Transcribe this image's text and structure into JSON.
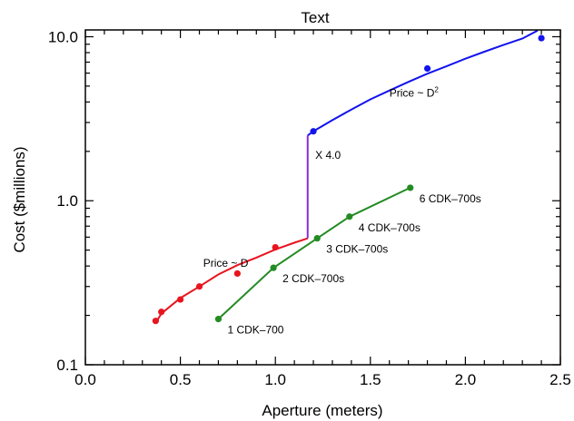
{
  "chart_data": {
    "type": "line",
    "title": "Text",
    "xlabel": "Aperture (meters)",
    "ylabel": "Cost ($millions)",
    "xlim": [
      0.0,
      2.5
    ],
    "ylim": [
      0.1,
      11.0
    ],
    "yscale": "log",
    "grid": false,
    "xticks": [
      {
        "value": 0.0,
        "label": "0.0"
      },
      {
        "value": 0.5,
        "label": "0.5"
      },
      {
        "value": 1.0,
        "label": "1.0"
      },
      {
        "value": 1.5,
        "label": "1.5"
      },
      {
        "value": 2.0,
        "label": "2.0"
      },
      {
        "value": 2.5,
        "label": "2.5"
      }
    ],
    "yticks": [
      {
        "value": 0.1,
        "label": "0.1"
      },
      {
        "value": 1.0,
        "label": "1.0"
      },
      {
        "value": 10.0,
        "label": "10.0"
      }
    ],
    "series": [
      {
        "color": "#e8141e",
        "points": {
          "x": [
            0.37,
            0.4,
            0.5,
            0.6,
            0.8,
            1.0
          ],
          "y": [
            0.185,
            0.21,
            0.25,
            0.3,
            0.36,
            0.52
          ]
        },
        "fit": {
          "x": [
            0.37,
            0.4,
            0.5,
            0.6,
            0.7,
            0.8,
            0.9,
            1.0,
            1.1,
            1.17
          ],
          "y": [
            0.18,
            0.205,
            0.255,
            0.3,
            0.355,
            0.405,
            0.45,
            0.505,
            0.555,
            0.59
          ]
        }
      },
      {
        "color": "#1313ee",
        "points": {
          "x": [
            1.2,
            1.8,
            2.4
          ],
          "y": [
            2.65,
            6.4,
            9.8
          ]
        },
        "fit": {
          "x": [
            1.17,
            1.2,
            1.3,
            1.4,
            1.5,
            1.6,
            1.7,
            1.8,
            1.9,
            2.0,
            2.1,
            2.2,
            2.3,
            2.38
          ],
          "y": [
            2.5,
            2.65,
            3.1,
            3.6,
            4.15,
            4.7,
            5.3,
            5.95,
            6.6,
            7.35,
            8.1,
            8.9,
            9.75,
            10.9
          ]
        }
      },
      {
        "color": "#238b23",
        "points": {
          "x": [
            0.7,
            0.99,
            1.22,
            1.39,
            1.71
          ],
          "y": [
            0.19,
            0.39,
            0.59,
            0.8,
            1.2
          ]
        },
        "fit": {
          "x": [
            0.7,
            0.99,
            1.22,
            1.39,
            1.71
          ],
          "y": [
            0.19,
            0.39,
            0.59,
            0.8,
            1.2
          ]
        },
        "point_labels": [
          "1 CDK–700",
          "2 CDK–700s",
          "3 CDK–700s",
          "4 CDK–700s",
          "6 CDK–700s"
        ]
      }
    ],
    "jump": {
      "x": 1.17,
      "y_from": 0.59,
      "y_to": 2.5,
      "color": "#8a2be2"
    },
    "annotations": [
      {
        "text": "Price ~ D",
        "x": 0.62,
        "y": 0.395,
        "superscript": ""
      },
      {
        "text": "Price ~ D",
        "x": 1.6,
        "y": 4.3,
        "superscript": "2"
      },
      {
        "text": "X 4.0",
        "x": 1.21,
        "y": 1.8,
        "superscript": ""
      }
    ]
  }
}
